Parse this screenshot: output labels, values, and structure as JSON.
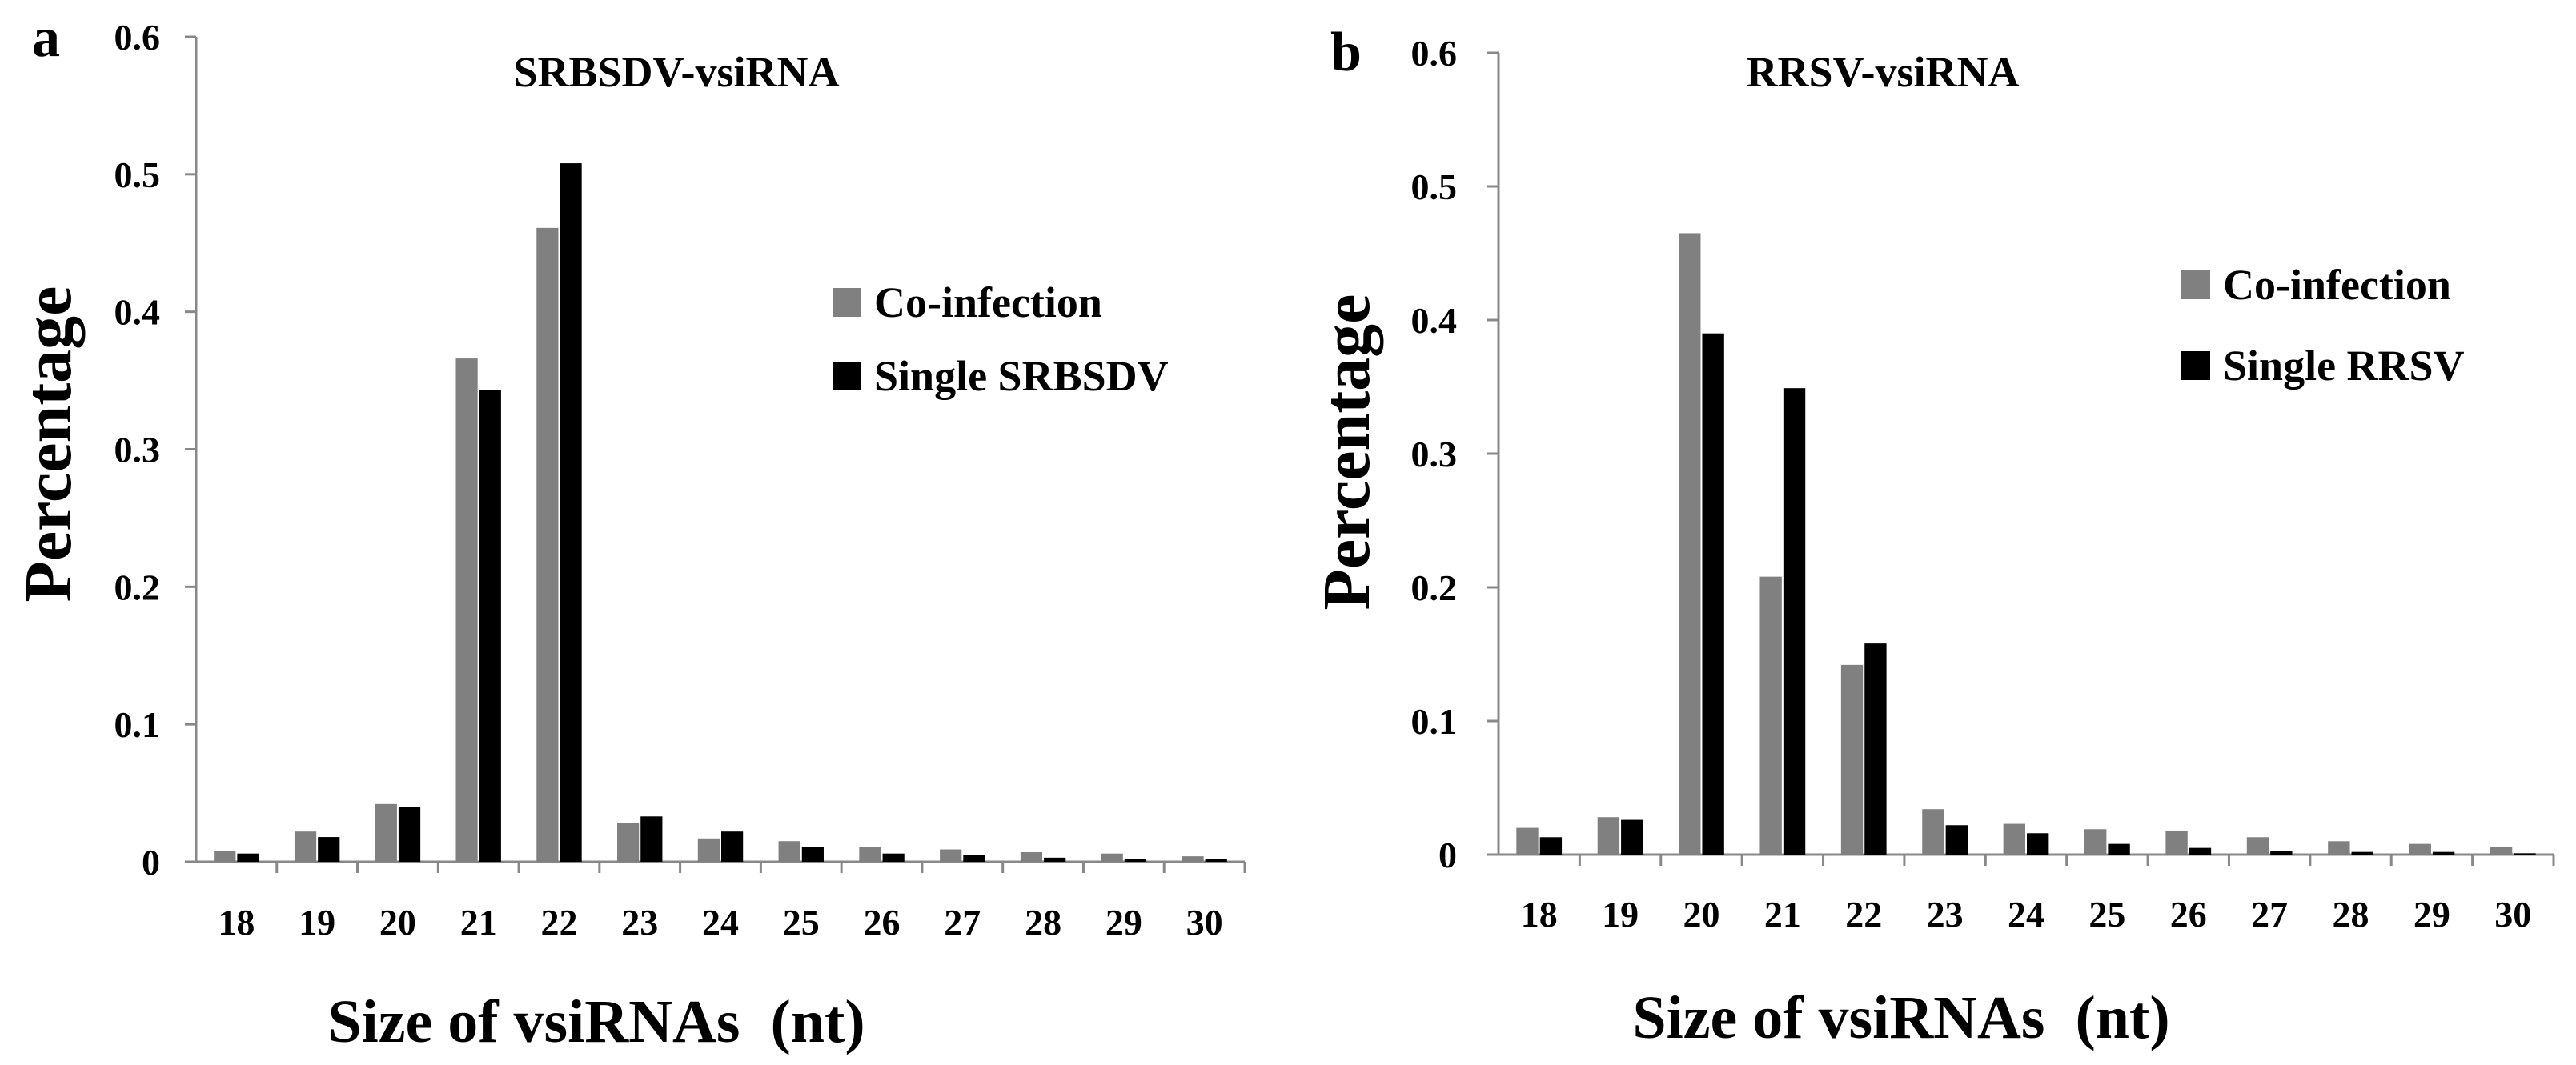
{
  "chart_data": [
    {
      "panel": "a",
      "type": "bar",
      "title": "SRBSDV-vsiRNA",
      "xlabel": "Size of vsiRNAs  (nt)",
      "ylabel": "Percentage",
      "ylim": [
        0,
        0.6
      ],
      "yticks": [
        "0",
        "0.1",
        "0.2",
        "0.3",
        "0.4",
        "0.5",
        "0.6"
      ],
      "categories": [
        "18",
        "19",
        "20",
        "21",
        "22",
        "23",
        "24",
        "25",
        "26",
        "27",
        "28",
        "29",
        "30"
      ],
      "series": [
        {
          "name": "Co-infection",
          "color": "#808080",
          "values": [
            0.008,
            0.022,
            0.042,
            0.366,
            0.461,
            0.028,
            0.017,
            0.015,
            0.011,
            0.009,
            0.007,
            0.006,
            0.004
          ]
        },
        {
          "name": "Single SRBSDV",
          "color": "#000000",
          "values": [
            0.006,
            0.018,
            0.04,
            0.343,
            0.508,
            0.033,
            0.022,
            0.011,
            0.006,
            0.005,
            0.003,
            0.002,
            0.002
          ]
        }
      ]
    },
    {
      "panel": "b",
      "type": "bar",
      "title": "RRSV-vsiRNA",
      "xlabel": "Size of vsiRNAs  (nt)",
      "ylabel": "Percentage",
      "ylim": [
        0,
        0.6
      ],
      "yticks": [
        "0",
        "0.1",
        "0.2",
        "0.3",
        "0.4",
        "0.5",
        "0.6"
      ],
      "categories": [
        "18",
        "19",
        "20",
        "21",
        "22",
        "23",
        "24",
        "25",
        "26",
        "27",
        "28",
        "29",
        "30"
      ],
      "series": [
        {
          "name": "Co-infection",
          "color": "#808080",
          "values": [
            0.02,
            0.028,
            0.465,
            0.208,
            0.142,
            0.034,
            0.023,
            0.019,
            0.018,
            0.013,
            0.01,
            0.008,
            0.006
          ]
        },
        {
          "name": "Single RRSV",
          "color": "#000000",
          "values": [
            0.013,
            0.026,
            0.39,
            0.349,
            0.158,
            0.022,
            0.016,
            0.008,
            0.005,
            0.003,
            0.002,
            0.002,
            0.001
          ]
        }
      ]
    }
  ]
}
